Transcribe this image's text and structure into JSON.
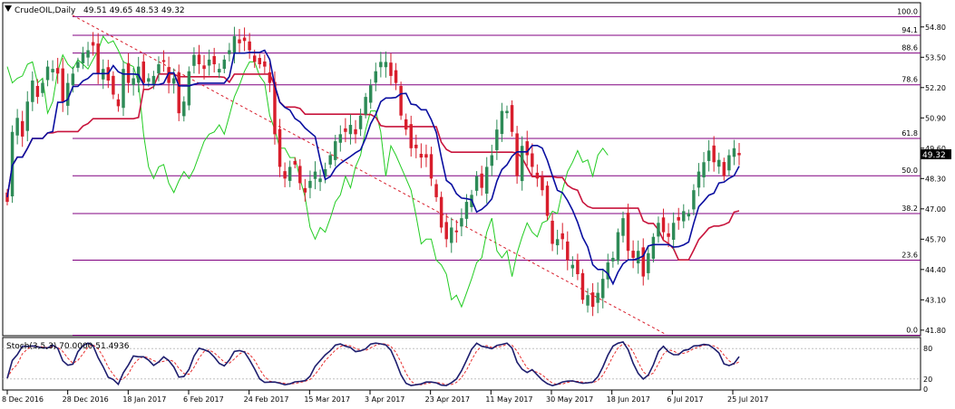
{
  "header": {
    "symbol": "CrudeOIL,Daily",
    "ohlc": "49.51 49.65 48.53 49.32"
  },
  "indicator": {
    "label": "Stoch(3,5,3) 70.0000 51.4936"
  },
  "colors": {
    "bull": "#2e8b57",
    "bear": "#d81e2c",
    "fast_line": "#0a0fa0",
    "slow_line": "#c8143c",
    "lagging_line": "#22cc22",
    "fib_line": "#800080",
    "trend_line": "#d81e2c",
    "stoch_main": "#1e1e6e",
    "stoch_signal": "#e83030"
  },
  "chart_data": [
    {
      "type": "candlestick",
      "title": "CrudeOIL,Daily",
      "ohlc_last": {
        "open": 49.51,
        "high": 49.65,
        "low": 48.53,
        "close": 49.32
      },
      "current_price": 49.32,
      "y_ticks": [
        54.8,
        53.5,
        52.2,
        50.9,
        49.6,
        48.3,
        47.0,
        45.7,
        44.4,
        43.1,
        41.8
      ],
      "ylim": [
        41.6,
        55.8
      ],
      "x_ticks": [
        "8 Dec 2016",
        "28 Dec 2016",
        "18 Jan 2017",
        "6 Feb 2017",
        "24 Feb 2017",
        "15 Mar 2017",
        "3 Apr 2017",
        "23 Apr 2017",
        "11 May 2017",
        "30 May 2017",
        "18 Jun 2017",
        "6 Jul 2017",
        "25 Jul 2017"
      ],
      "fibonacci": {
        "levels": [
          {
            "label": "100.0",
            "price": 55.24
          },
          {
            "label": "94.1",
            "price": 54.44
          },
          {
            "label": "88.6",
            "price": 53.68
          },
          {
            "label": "78.6",
            "price": 52.32
          },
          {
            "label": "61.8",
            "price": 50.02
          },
          {
            "label": "50.0",
            "price": 48.42
          },
          {
            "label": "38.2",
            "price": 46.8
          },
          {
            "label": "23.6",
            "price": 44.8
          },
          {
            "label": "0.0",
            "price": 41.58
          }
        ]
      },
      "trendline": {
        "from_date": "28 Dec 2016",
        "from_price": 55.3,
        "to_date": "30 Jun 2017",
        "to_price": 41.6
      },
      "closes": [
        47.3,
        50.3,
        50.9,
        50.1,
        51.6,
        52.5,
        51.8,
        52.4,
        53.1,
        53.0,
        52.8,
        51.6,
        52.4,
        52.8,
        53.3,
        53.7,
        53.8,
        54.0,
        52.8,
        53.0,
        52.5,
        51.9,
        51.4,
        53.0,
        52.4,
        52.6,
        53.1,
        52.4,
        52.6,
        52.7,
        53.2,
        53.3,
        52.4,
        52.6,
        51.1,
        51.6,
        52.9,
        53.6,
        53.2,
        53.0,
        53.4,
        53.2,
        53.0,
        53.4,
        53.8,
        54.4,
        54.1,
        54.2,
        53.8,
        53.3,
        53.2,
        53.1,
        52.4,
        50.2,
        48.8,
        48.3,
        48.8,
        48.9,
        48.1,
        47.7,
        48.2,
        48.6,
        48.3,
        48.7,
        49.3,
        49.9,
        50.2,
        50.3,
        50.6,
        50.2,
        51.0,
        51.8,
        52.3,
        52.9,
        53.3,
        53.3,
        52.7,
        52.4,
        51.0,
        50.4,
        49.6,
        49.6,
        49.2,
        49.2,
        48.3,
        47.5,
        46.2,
        45.7,
        46.2,
        46.0,
        46.6,
        47.3,
        47.6,
        48.4,
        47.9,
        48.8,
        49.3,
        50.4,
        51.2,
        51.2,
        50.3,
        48.4,
        49.7,
        49.3,
        48.8,
        48.3,
        47.8,
        46.7,
        45.5,
        45.7,
        45.7,
        44.8,
        44.6,
        44.2,
        43.1,
        43.3,
        42.8,
        43.4,
        44.0,
        44.7,
        44.9,
        46.0,
        46.6,
        45.2,
        44.9,
        45.2,
        44.1,
        45.1,
        45.8,
        46.4,
        46.0,
        45.8,
        46.4,
        46.5,
        46.9,
        46.8,
        47.8,
        48.6,
        49.0,
        49.5,
        49.0,
        49.1,
        48.4,
        49.3,
        49.6,
        49.3
      ]
    },
    {
      "type": "line",
      "title": "Stoch(3,5,3) 70.0000 51.4936",
      "series": [
        {
          "name": "Main",
          "last": 70.0
        },
        {
          "name": "Signal",
          "last": 51.4936
        }
      ],
      "y_ticks": [
        80,
        20,
        0
      ],
      "ylim": [
        0,
        100
      ]
    }
  ]
}
